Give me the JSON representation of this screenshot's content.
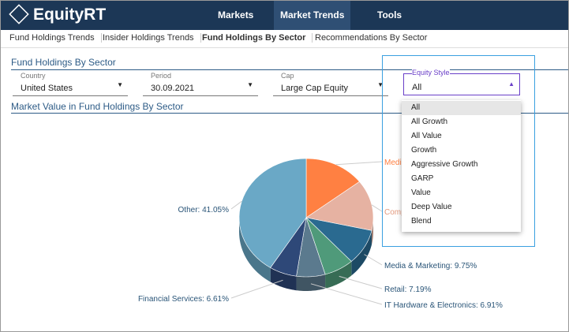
{
  "header": {
    "logo": "EquityRT",
    "nav": [
      "Markets",
      "Market Trends",
      "Tools"
    ]
  },
  "tabs": [
    "Fund Holdings Trends",
    "Insider Holdings Trends",
    "Fund Holdings By Sector",
    "Recommendations By Sector"
  ],
  "section_title": "Fund Holdings By Sector",
  "filters": [
    {
      "label": "Country",
      "value": "United States"
    },
    {
      "label": "Period",
      "value": "30.09.2021"
    },
    {
      "label": "Cap",
      "value": "Large Cap Equity"
    },
    {
      "label": "Equity Style",
      "value": "All"
    }
  ],
  "dropdown_options": [
    "All",
    "All Growth",
    "All Value",
    "Growth",
    "Aggressive Growth",
    "GARP",
    "Value",
    "Deep Value",
    "Blend"
  ],
  "chart_data": {
    "type": "pie",
    "title": "Market Value in Fund Holdings By Sector",
    "values": [
      14.59,
      13.9,
      9.75,
      7.19,
      6.91,
      6.61,
      41.05
    ],
    "value_labels": [
      "Medi",
      "Comp",
      "Media & Marketing: 9.75%",
      "Retail: 7.19%",
      "IT Hardware & Electronics: 6.91%",
      "Financial Services: 6.61%",
      "Other: 41.05%"
    ],
    "colors": [
      "#ff8042",
      "#e6b2a2",
      "#2a6a90",
      "#4f9a7a",
      "#5b7a8e",
      "#2e4878",
      "#6aa8c6"
    ]
  }
}
